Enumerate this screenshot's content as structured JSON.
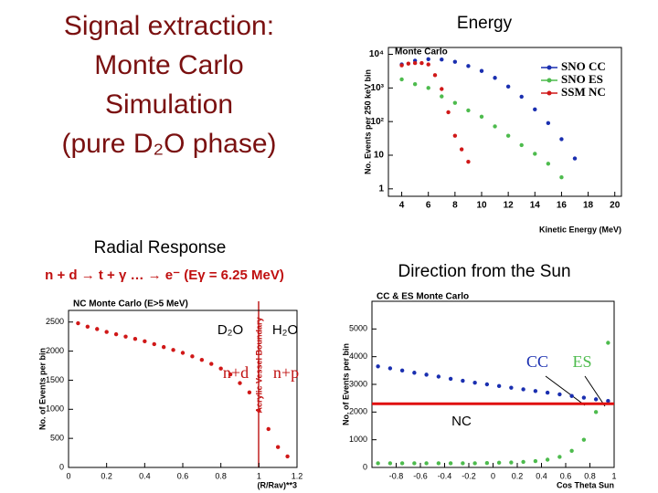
{
  "slide": {
    "title": [
      "Signal extraction:",
      "Monte Carlo",
      "Simulation",
      "(pure D₂O phase)"
    ],
    "headings": {
      "energy": "Energy",
      "radial": "Radial Response",
      "reaction": "n + d → t + γ … → e⁻ (Eγ = 6.25 MeV)",
      "direction": "Direction from the Sun"
    }
  },
  "chart_data": [
    {
      "type": "scatter",
      "title": "Monte Carlo",
      "xlabel": "Kinetic Energy (MeV)",
      "ylabel": "No. Events per 250 keV bin",
      "yscale": "log",
      "legend": "upper right",
      "xlim": [
        3,
        20.5
      ],
      "xticks": [
        4,
        6,
        8,
        10,
        12,
        14,
        16,
        18,
        20
      ],
      "ylim": [
        0.6,
        16000
      ],
      "yticks": [
        1,
        10,
        {
          "value": 100,
          "label": "10²"
        },
        {
          "value": 1000,
          "label": "10³"
        },
        {
          "value": 10000,
          "label": "10⁴"
        }
      ],
      "series": [
        {
          "name": "SNO CC",
          "color": "#1a2fb0",
          "x": [
            4,
            5,
            6,
            7,
            8,
            9,
            10,
            11,
            12,
            13,
            14,
            15,
            16,
            17
          ],
          "values": [
            5000,
            6500,
            7200,
            7000,
            6000,
            4500,
            3200,
            2000,
            1100,
            550,
            230,
            90,
            30,
            8
          ]
        },
        {
          "name": "SNO ES",
          "color": "#4dbb4d",
          "x": [
            4,
            5,
            6,
            7,
            8,
            9,
            10,
            11,
            12,
            13,
            14,
            15,
            16
          ],
          "values": [
            1800,
            1300,
            1000,
            560,
            360,
            215,
            140,
            72,
            38,
            20,
            11,
            5.6,
            2.2
          ]
        },
        {
          "name": "SSM NC",
          "color": "#d01818",
          "x": [
            4,
            4.5,
            5,
            5.5,
            6,
            6.5,
            7,
            7.5,
            8,
            8.5,
            9
          ],
          "values": [
            4700,
            5300,
            5500,
            5500,
            5000,
            2400,
            930,
            190,
            38,
            15,
            6.4
          ]
        }
      ]
    },
    {
      "type": "scatter",
      "title": "NC Monte Carlo (E>5 MeV)",
      "xlabel": "(R/Rav)**3",
      "ylabel": "No. of Events per bin",
      "annotations": [
        "D₂O",
        "H₂O",
        "n+d",
        "n+p",
        "Acrylic Vessel Boundary"
      ],
      "xlim": [
        0,
        1.2
      ],
      "xticks": [
        0,
        0.2,
        0.4,
        0.6,
        0.8,
        1,
        1.2
      ],
      "ylim": [
        0,
        2700
      ],
      "yticks": [
        0,
        500,
        1000,
        1500,
        2000,
        2500
      ],
      "series": [
        {
          "color": "#d01818",
          "x": [
            0.05,
            0.1,
            0.15,
            0.2,
            0.25,
            0.3,
            0.35,
            0.4,
            0.45,
            0.5,
            0.55,
            0.6,
            0.65,
            0.7,
            0.75,
            0.8,
            0.85,
            0.9,
            0.95,
            1,
            1.05,
            1.1,
            1.15
          ],
          "values": [
            2480,
            2420,
            2380,
            2330,
            2290,
            2250,
            2210,
            2170,
            2120,
            2070,
            2020,
            1970,
            1910,
            1850,
            1780,
            1700,
            1600,
            1450,
            1290,
            975,
            660,
            350,
            190
          ]
        }
      ]
    },
    {
      "type": "scatter",
      "title": "CC & ES Monte Carlo",
      "xlabel": "Cos Theta Sun",
      "ylabel": "No. of Events per bin",
      "xlim": [
        -1,
        1
      ],
      "xticks": [
        -0.8,
        -0.6,
        -0.4,
        -0.2,
        0,
        0.2,
        0.4,
        0.6,
        0.8,
        1
      ],
      "ylim": [
        0,
        6000
      ],
      "yticks": [
        0,
        1000,
        2000,
        3000,
        4000,
        5000
      ],
      "series": [
        {
          "name": "CC",
          "color": "#1a2fb0",
          "x": [
            -0.95,
            -0.85,
            -0.75,
            -0.65,
            -0.55,
            -0.45,
            -0.35,
            -0.25,
            -0.15,
            -0.05,
            0.05,
            0.15,
            0.25,
            0.35,
            0.45,
            0.55,
            0.65,
            0.75,
            0.85,
            0.95
          ],
          "values": [
            3650,
            3580,
            3500,
            3420,
            3350,
            3280,
            3200,
            3130,
            3060,
            3000,
            2940,
            2880,
            2820,
            2760,
            2700,
            2640,
            2580,
            2520,
            2460,
            2400
          ]
        },
        {
          "name": "ES",
          "color": "#4dbb4d",
          "x": [
            -0.95,
            -0.85,
            -0.75,
            -0.65,
            -0.55,
            -0.45,
            -0.35,
            -0.25,
            -0.15,
            -0.05,
            0.05,
            0.15,
            0.25,
            0.35,
            0.45,
            0.55,
            0.65,
            0.75,
            0.85,
            0.95
          ],
          "values": [
            150,
            150,
            150,
            150,
            150,
            150,
            150,
            150,
            150,
            160,
            170,
            180,
            200,
            230,
            280,
            380,
            600,
            1000,
            2000,
            4500
          ]
        },
        {
          "name": "NC",
          "type": "line",
          "color": "#e01010",
          "x": [
            -1,
            1
          ],
          "values": [
            2300,
            2300
          ]
        }
      ]
    }
  ]
}
